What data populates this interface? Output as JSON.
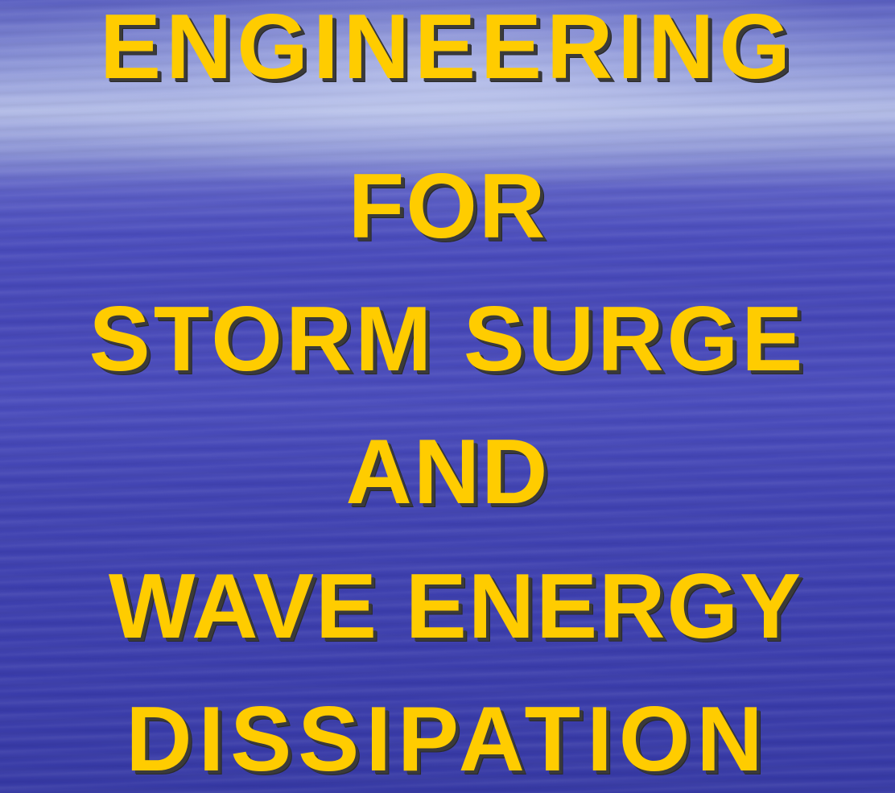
{
  "slide": {
    "background_color": "#4546b6",
    "text_color": "#ffcc00",
    "title_lines": [
      "ENGINEERING",
      "FOR",
      "STORM SURGE",
      "AND",
      "WAVE ENERGY",
      "DISSIPATION"
    ]
  }
}
